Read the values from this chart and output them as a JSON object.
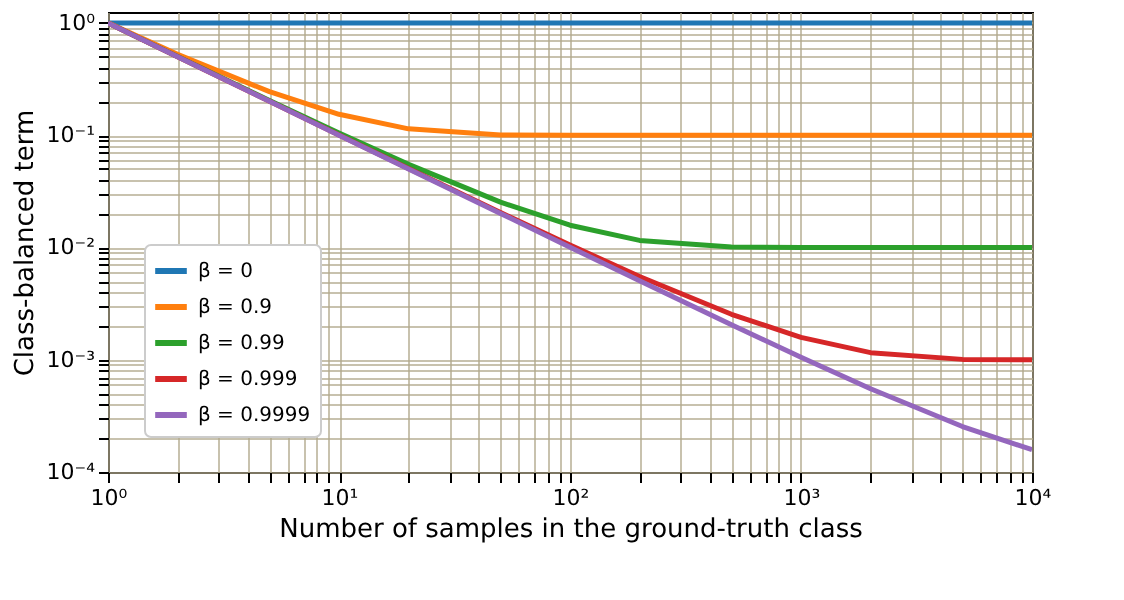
{
  "chart_data": {
    "type": "line",
    "xlabel": "Number of samples in the ground-truth class",
    "ylabel": "Class-balanced term",
    "x": [
      1,
      2,
      5,
      10,
      20,
      50,
      100,
      200,
      500,
      1000,
      2000,
      5000,
      10000
    ],
    "series": [
      {
        "name": "β = 0",
        "color": "#1f77b4",
        "values": [
          1,
          1,
          1,
          1,
          1,
          1,
          1,
          1,
          1,
          1,
          1,
          1,
          1
        ]
      },
      {
        "name": "β = 0.9",
        "color": "#ff7f0e",
        "values": [
          1,
          0.526,
          0.244,
          0.1535,
          0.1138,
          0.1005,
          0.1,
          0.1,
          0.1,
          0.1,
          0.1,
          0.1,
          0.1
        ]
      },
      {
        "name": "β = 0.99",
        "color": "#2ca02c",
        "values": [
          1,
          0.5025,
          0.204,
          0.1046,
          0.0549,
          0.0253,
          0.01577,
          0.01155,
          0.01007,
          0.01,
          0.01,
          0.01,
          0.01
        ]
      },
      {
        "name": "β = 0.999",
        "color": "#d62728",
        "values": [
          1,
          0.5003,
          0.2004,
          0.1005,
          0.0505,
          0.0205,
          0.0105,
          0.00551,
          0.00254,
          0.00158,
          0.001156,
          0.001007,
          0.001
        ]
      },
      {
        "name": "β = 0.9999",
        "color": "#9467bd",
        "values": [
          1,
          0.5,
          0.2,
          0.1,
          0.05,
          0.0201,
          0.01005,
          0.00505,
          0.00205,
          0.00105,
          0.000552,
          0.000254,
          0.000158
        ]
      }
    ],
    "log": "xy",
    "xlim": [
      1,
      10000
    ],
    "ylim": [
      0.0001,
      1.25
    ],
    "xticks": [
      {
        "value": 1,
        "label": "10⁰"
      },
      {
        "value": 2,
        "label": null
      },
      {
        "value": 3,
        "label": null
      },
      {
        "value": 4,
        "label": null
      },
      {
        "value": 5,
        "label": null
      },
      {
        "value": 6,
        "label": null
      },
      {
        "value": 7,
        "label": null
      },
      {
        "value": 8,
        "label": null
      },
      {
        "value": 9,
        "label": null
      },
      {
        "value": 10,
        "label": "10¹"
      },
      {
        "value": 20,
        "label": null
      },
      {
        "value": 30,
        "label": null
      },
      {
        "value": 40,
        "label": null
      },
      {
        "value": 50,
        "label": null
      },
      {
        "value": 60,
        "label": null
      },
      {
        "value": 70,
        "label": null
      },
      {
        "value": 80,
        "label": null
      },
      {
        "value": 90,
        "label": null
      },
      {
        "value": 100,
        "label": "10²"
      },
      {
        "value": 200,
        "label": null
      },
      {
        "value": 300,
        "label": null
      },
      {
        "value": 400,
        "label": null
      },
      {
        "value": 500,
        "label": null
      },
      {
        "value": 600,
        "label": null
      },
      {
        "value": 700,
        "label": null
      },
      {
        "value": 800,
        "label": null
      },
      {
        "value": 900,
        "label": null
      },
      {
        "value": 1000,
        "label": "10³"
      },
      {
        "value": 2000,
        "label": null
      },
      {
        "value": 3000,
        "label": null
      },
      {
        "value": 4000,
        "label": null
      },
      {
        "value": 5000,
        "label": null
      },
      {
        "value": 6000,
        "label": null
      },
      {
        "value": 7000,
        "label": null
      },
      {
        "value": 8000,
        "label": null
      },
      {
        "value": 9000,
        "label": null
      },
      {
        "value": 10000,
        "label": "10⁴"
      }
    ],
    "yticks": [
      {
        "value": 0.0001,
        "label": "10⁻⁴"
      },
      {
        "value": 0.0002,
        "label": null
      },
      {
        "value": 0.0003,
        "label": null
      },
      {
        "value": 0.0004,
        "label": null
      },
      {
        "value": 0.0005,
        "label": null
      },
      {
        "value": 0.0006,
        "label": null
      },
      {
        "value": 0.0007,
        "label": null
      },
      {
        "value": 0.0008,
        "label": null
      },
      {
        "value": 0.0009,
        "label": null
      },
      {
        "value": 0.001,
        "label": "10⁻³"
      },
      {
        "value": 0.002,
        "label": null
      },
      {
        "value": 0.003,
        "label": null
      },
      {
        "value": 0.004,
        "label": null
      },
      {
        "value": 0.005,
        "label": null
      },
      {
        "value": 0.006,
        "label": null
      },
      {
        "value": 0.007,
        "label": null
      },
      {
        "value": 0.008,
        "label": null
      },
      {
        "value": 0.009,
        "label": null
      },
      {
        "value": 0.01,
        "label": "10⁻²"
      },
      {
        "value": 0.02,
        "label": null
      },
      {
        "value": 0.03,
        "label": null
      },
      {
        "value": 0.04,
        "label": null
      },
      {
        "value": 0.05,
        "label": null
      },
      {
        "value": 0.06,
        "label": null
      },
      {
        "value": 0.07,
        "label": null
      },
      {
        "value": 0.08,
        "label": null
      },
      {
        "value": 0.09,
        "label": null
      },
      {
        "value": 0.1,
        "label": "10⁻¹"
      },
      {
        "value": 0.2,
        "label": null
      },
      {
        "value": 0.3,
        "label": null
      },
      {
        "value": 0.4,
        "label": null
      },
      {
        "value": 0.5,
        "label": null
      },
      {
        "value": 0.6,
        "label": null
      },
      {
        "value": 0.7,
        "label": null
      },
      {
        "value": 0.8,
        "label": null
      },
      {
        "value": 0.9,
        "label": null
      },
      {
        "value": 1,
        "label": "10⁰"
      }
    ],
    "grid": true,
    "legend": "bottom left",
    "line_style": "solid",
    "marker": "none"
  }
}
